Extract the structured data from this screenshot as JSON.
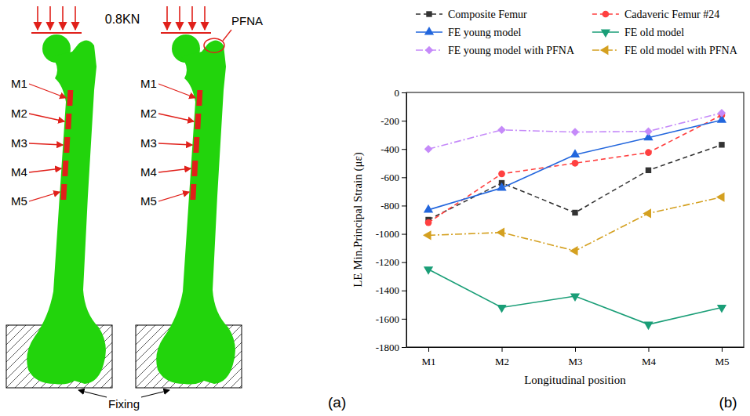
{
  "chart_data": {
    "type": "line",
    "x_label": "Longitudinal position",
    "y_label": "LE Min.Principal Strain (με)",
    "categories": [
      "M1",
      "M2",
      "M3",
      "M4",
      "M5"
    ],
    "series": [
      {
        "name": "Composite Femur",
        "color": "#333333",
        "marker": "square",
        "line_style": "dashed",
        "values": [
          -900,
          -640,
          -850,
          -550,
          -370
        ]
      },
      {
        "name": "Cadaveric Femur #24",
        "color": "#ff4040",
        "marker": "circle",
        "line_style": "dashed",
        "values": [
          -920,
          -575,
          -500,
          -425,
          -160
        ]
      },
      {
        "name": "FE young model",
        "color": "#2266dd",
        "marker": "triangle-up",
        "line_style": "solid",
        "values": [
          -830,
          -675,
          -440,
          -320,
          -195
        ]
      },
      {
        "name": "FE old model",
        "color": "#1a9e77",
        "marker": "triangle-down",
        "line_style": "solid",
        "values": [
          -1250,
          -1520,
          -1440,
          -1640,
          -1520
        ]
      },
      {
        "name": "FE young model with PFNA",
        "color": "#c58af9",
        "marker": "diamond",
        "line_style": "dash-dot",
        "values": [
          -400,
          -265,
          -280,
          -275,
          -145
        ]
      },
      {
        "name": "FE old model with PFNA",
        "color": "#d4a020",
        "marker": "triangle-left",
        "line_style": "dash-dot",
        "values": [
          -1010,
          -990,
          -1120,
          -855,
          -740
        ]
      }
    ],
    "ylim": [
      -1800,
      0
    ],
    "yticks": [
      -1800,
      -1600,
      -1400,
      -1200,
      -1000,
      -800,
      -600,
      -400,
      -200,
      0
    ],
    "grid": false,
    "legend": "top",
    "annotations": [
      "(b)"
    ]
  },
  "diagram": {
    "load_label": "0.8KN",
    "implant_label": "PFNA",
    "gauge_labels": [
      "M1",
      "M2",
      "M3",
      "M4",
      "M5"
    ],
    "support_label": "Fixing",
    "panel_label": "(a)"
  }
}
